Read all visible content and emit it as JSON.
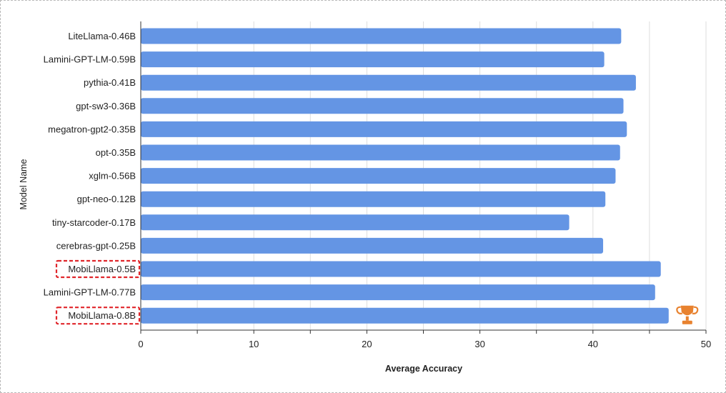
{
  "chart_data": {
    "type": "bar",
    "orientation": "horizontal",
    "title": "",
    "xlabel": "Average Accuracy",
    "ylabel": "Model Name",
    "xlim": [
      0,
      50
    ],
    "x_ticks": [
      0,
      10,
      20,
      30,
      40,
      50
    ],
    "grid": true,
    "categories": [
      "LiteLlama-0.46B",
      "Lamini-GPT-LM-0.59B",
      "pythia-0.41B",
      "gpt-sw3-0.36B",
      "megatron-gpt2-0.35B",
      "opt-0.35B",
      "xglm-0.56B",
      "gpt-neo-0.12B",
      "tiny-starcoder-0.17B",
      "cerebras-gpt-0.25B",
      "MobiLlama-0.5B",
      "Lamini-GPT-LM-0.77B",
      "MobiLlama-0.8B"
    ],
    "values": [
      42.5,
      41.0,
      43.8,
      42.7,
      43.0,
      42.4,
      42.0,
      41.1,
      37.9,
      40.9,
      46.0,
      45.5,
      46.7
    ],
    "bar_color": "#6495E4",
    "highlighted": [
      "MobiLlama-0.5B",
      "MobiLlama-0.8B"
    ],
    "highlight_color": "#E0262B",
    "winner_icon": "trophy-icon",
    "winner_icon_color": "#E8822F",
    "winner": "MobiLlama-0.8B"
  }
}
